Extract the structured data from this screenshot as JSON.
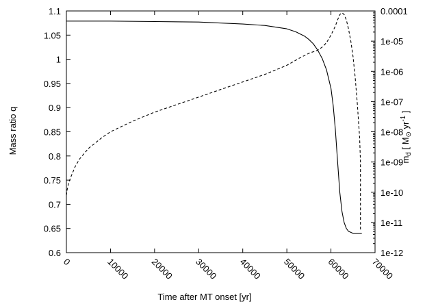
{
  "chart_data": {
    "type": "line",
    "xlabel": "Time after MT onset [yr]",
    "ylabel": "Mass ratio q",
    "y2label": "ṁ_d [ M_⊙ yr^-1 ]",
    "y2label_parts": {
      "symbol": "m",
      "subscript": "d",
      "open": " [ M",
      "sun": "⊙",
      "unit": " yr",
      "exponent": "-1",
      "close": " ]"
    },
    "xlim": [
      0,
      70000
    ],
    "ylim": [
      0.6,
      1.1
    ],
    "y2lim_log10": [
      -12,
      -4
    ],
    "y2scale": "log",
    "grid": false,
    "legend": "none",
    "x_tick_labels": [
      "0",
      "10000",
      "20000",
      "30000",
      "40000",
      "50000",
      "60000",
      "70000"
    ],
    "y_tick_labels": [
      "0.6",
      "0.65",
      "0.7",
      "0.75",
      "0.8",
      "0.85",
      "0.9",
      "0.95",
      "1",
      "1.05",
      "1.1"
    ],
    "y2_tick_labels": [
      "1e-12",
      "1e-11",
      "1e-10",
      "1e-09",
      "1e-08",
      "1e-07",
      "1e-06",
      "1e-05",
      "0.0001"
    ],
    "series": [
      {
        "axis": "left",
        "style": "solid",
        "x": [
          0,
          10000,
          20000,
          30000,
          40000,
          45000,
          50000,
          52000,
          54000,
          55000,
          56000,
          57000,
          58000,
          59000,
          60000,
          60500,
          61000,
          61500,
          62000,
          62500,
          63000,
          63500,
          64000,
          65000,
          66000,
          67000
        ],
        "y": [
          1.079,
          1.079,
          1.078,
          1.077,
          1.073,
          1.07,
          1.063,
          1.057,
          1.048,
          1.041,
          1.032,
          1.019,
          1.002,
          0.978,
          0.94,
          0.905,
          0.855,
          0.79,
          0.725,
          0.685,
          0.662,
          0.65,
          0.644,
          0.64,
          0.64,
          0.64
        ]
      },
      {
        "axis": "right",
        "style": "dashed",
        "x": [
          0,
          200,
          500,
          1000,
          2000,
          3000,
          5000,
          8000,
          10000,
          15000,
          20000,
          25000,
          30000,
          35000,
          40000,
          45000,
          50000,
          53000,
          55000,
          57000,
          58000,
          59000,
          60000,
          61000,
          61500,
          62000,
          62500,
          63000,
          63500,
          64000,
          64500,
          65000,
          65500,
          66000,
          66500,
          66700,
          66700
        ],
        "log10_y": [
          -10.1,
          -9.9,
          -9.7,
          -9.5,
          -9.15,
          -8.9,
          -8.55,
          -8.2,
          -8.0,
          -7.65,
          -7.35,
          -7.1,
          -6.85,
          -6.6,
          -6.35,
          -6.1,
          -5.8,
          -5.55,
          -5.4,
          -5.3,
          -5.2,
          -5.05,
          -4.8,
          -4.5,
          -4.3,
          -4.12,
          -4.06,
          -4.12,
          -4.3,
          -4.6,
          -5.0,
          -5.5,
          -6.2,
          -7.1,
          -8.2,
          -9.0,
          -11.3
        ]
      }
    ]
  }
}
